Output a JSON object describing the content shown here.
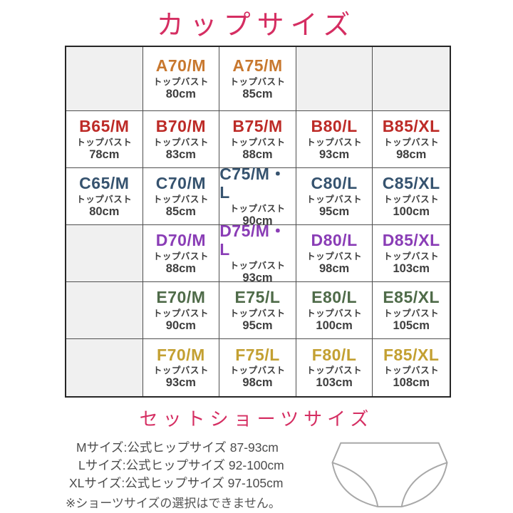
{
  "page": {
    "title": "カップサイズ"
  },
  "colors": {
    "heading": "#d52e62",
    "row_a": "#c8782f",
    "row_b": "#bd2b27",
    "row_c": "#36536f",
    "row_d": "#8a3db6",
    "row_e": "#4f6b49",
    "row_f": "#c3a032",
    "cell_text": "#3e3e3e",
    "empty_cell_bg": "#f0f0f0"
  },
  "chart_data": {
    "type": "table",
    "title": "カップサイズ",
    "cell_sublabel": "トップバスト",
    "rows": [
      {
        "cup": "A",
        "color": "#c8782f",
        "cells": [
          null,
          {
            "size": "A70/M",
            "top_bust": "80cm"
          },
          {
            "size": "A75/M",
            "top_bust": "85cm"
          },
          null,
          null
        ]
      },
      {
        "cup": "B",
        "color": "#bd2b27",
        "cells": [
          {
            "size": "B65/M",
            "top_bust": "78cm"
          },
          {
            "size": "B70/M",
            "top_bust": "83cm"
          },
          {
            "size": "B75/M",
            "top_bust": "88cm"
          },
          {
            "size": "B80/L",
            "top_bust": "93cm"
          },
          {
            "size": "B85/XL",
            "top_bust": "98cm"
          }
        ]
      },
      {
        "cup": "C",
        "color": "#36536f",
        "cells": [
          {
            "size": "C65/M",
            "top_bust": "80cm"
          },
          {
            "size": "C70/M",
            "top_bust": "85cm"
          },
          {
            "size": "C75/M・L",
            "top_bust": "90cm"
          },
          {
            "size": "C80/L",
            "top_bust": "95cm"
          },
          {
            "size": "C85/XL",
            "top_bust": "100cm"
          }
        ]
      },
      {
        "cup": "D",
        "color": "#8a3db6",
        "cells": [
          null,
          {
            "size": "D70/M",
            "top_bust": "88cm"
          },
          {
            "size": "D75/M・L",
            "top_bust": "93cm"
          },
          {
            "size": "D80/L",
            "top_bust": "98cm"
          },
          {
            "size": "D85/XL",
            "top_bust": "103cm"
          }
        ]
      },
      {
        "cup": "E",
        "color": "#4f6b49",
        "cells": [
          null,
          {
            "size": "E70/M",
            "top_bust": "90cm"
          },
          {
            "size": "E75/L",
            "top_bust": "95cm"
          },
          {
            "size": "E80/L",
            "top_bust": "100cm"
          },
          {
            "size": "E85/XL",
            "top_bust": "105cm"
          }
        ]
      },
      {
        "cup": "F",
        "color": "#c3a032",
        "cells": [
          null,
          {
            "size": "F70/M",
            "top_bust": "93cm"
          },
          {
            "size": "F75/L",
            "top_bust": "98cm"
          },
          {
            "size": "F80/L",
            "top_bust": "103cm"
          },
          {
            "size": "F85/XL",
            "top_bust": "108cm"
          }
        ]
      }
    ]
  },
  "shorts": {
    "heading": "セットショーツサイズ",
    "lines": [
      "Mサイズ:公式ヒップサイズ 87-93cm",
      "Lサイズ:公式ヒップサイズ 92-100cm",
      "XLサイズ:公式ヒップサイズ 97-105cm"
    ],
    "note": "※ショーツサイズの選択はできません。"
  }
}
